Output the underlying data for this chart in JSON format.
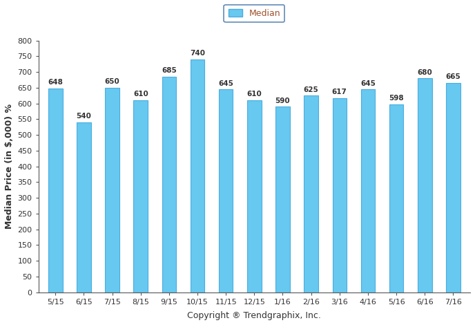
{
  "categories": [
    "5/15",
    "6/15",
    "7/15",
    "8/15",
    "9/15",
    "10/15",
    "11/15",
    "12/15",
    "1/16",
    "2/16",
    "3/16",
    "4/16",
    "5/16",
    "6/16",
    "7/16"
  ],
  "values": [
    648,
    540,
    650,
    610,
    685,
    740,
    645,
    610,
    590,
    625,
    617,
    645,
    598,
    680,
    665
  ],
  "bar_color": "#67C8F0",
  "bar_edge_color": "#4AADDF",
  "ylabel": "Median Price (in $,000) %",
  "xlabel": "Copyright ® Trendgraphix, Inc.",
  "ylim": [
    0,
    800
  ],
  "yticks": [
    0,
    50,
    100,
    150,
    200,
    250,
    300,
    350,
    400,
    450,
    500,
    550,
    600,
    650,
    700,
    750,
    800
  ],
  "legend_label": "Median",
  "legend_box_color": "#67C8F0",
  "legend_box_edge_color": "#4AADDF",
  "value_label_fontsize": 7.5,
  "axis_label_fontsize": 9,
  "tick_fontsize": 8,
  "bar_width": 0.5,
  "background_color": "#ffffff",
  "spine_color": "#555555",
  "label_color": "#333333",
  "legend_text_color": "#A0522D"
}
